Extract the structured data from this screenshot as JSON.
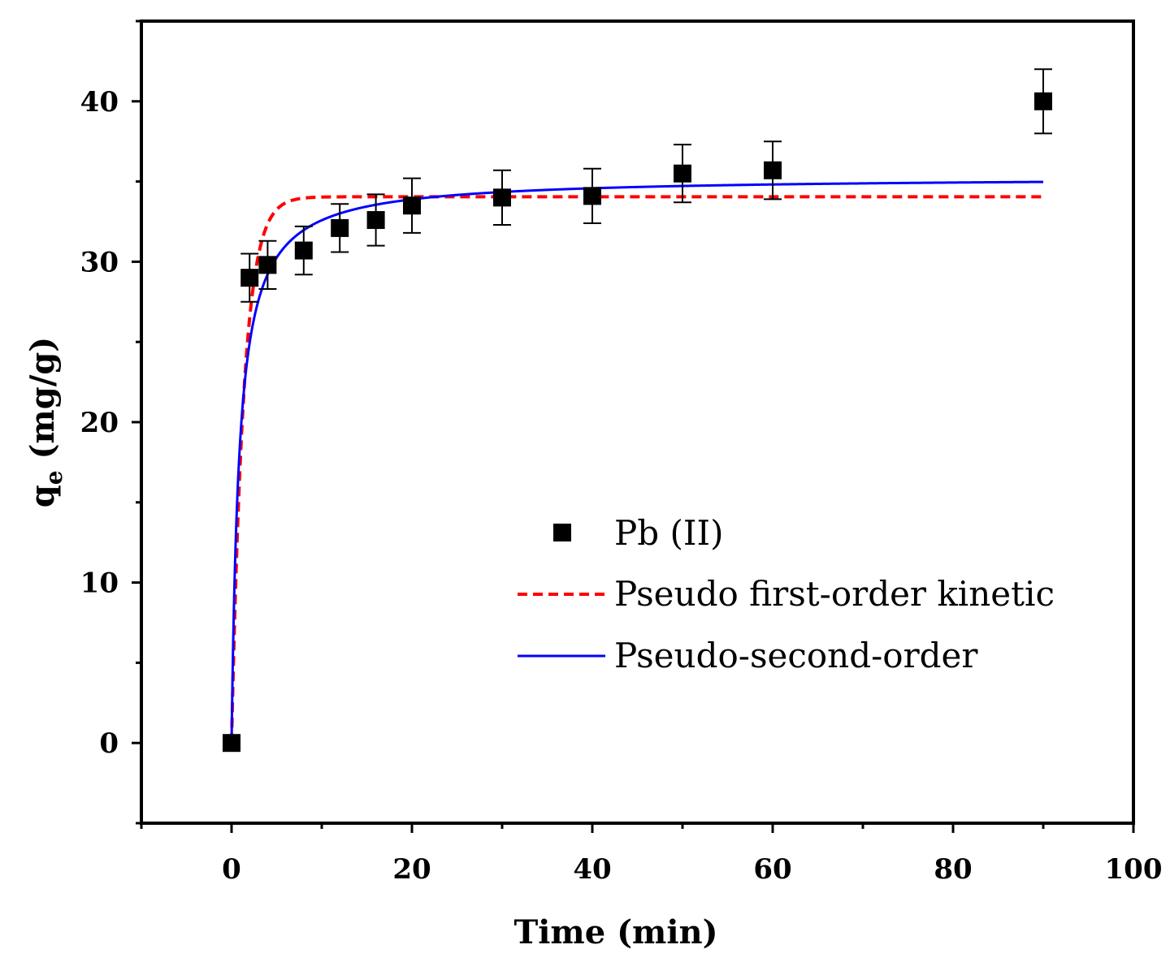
{
  "chart_data": {
    "type": "scatter",
    "title": "",
    "xlabel": "Time (min)",
    "ylabel": "q",
    "ylabel_sub": "e",
    "ylabel_unit": " (mg/g)",
    "xlim": [
      -10,
      100
    ],
    "ylim": [
      -5,
      45
    ],
    "xticks": [
      0,
      20,
      40,
      60,
      80,
      100
    ],
    "yticks": [
      0,
      10,
      20,
      30,
      40
    ],
    "grid": false,
    "legend_position": "center-right",
    "series": [
      {
        "name": "Pb (II)",
        "kind": "scatter",
        "marker": "square",
        "color": "#000000",
        "x": [
          0,
          2,
          4,
          8,
          12,
          16,
          20,
          30,
          40,
          50,
          60,
          90
        ],
        "y": [
          0,
          29.0,
          29.8,
          30.7,
          32.1,
          32.6,
          33.5,
          34.0,
          34.1,
          35.5,
          35.7,
          40.0
        ],
        "error": [
          0,
          1.5,
          1.5,
          1.5,
          1.5,
          1.6,
          1.7,
          1.7,
          1.7,
          1.8,
          1.8,
          2.0
        ]
      },
      {
        "name": "Pseudo first-order kinetic",
        "kind": "line",
        "style": "dashed",
        "color": "#ff0000",
        "model": "pfo",
        "qe": 34.05,
        "k": 0.75,
        "x_range": [
          0,
          90
        ]
      },
      {
        "name": "Pseudo-second-order",
        "kind": "line",
        "style": "solid",
        "color": "#0000ff",
        "model": "pso",
        "qe": 35.3,
        "k": 0.034,
        "x_range": [
          0,
          90
        ]
      }
    ]
  }
}
